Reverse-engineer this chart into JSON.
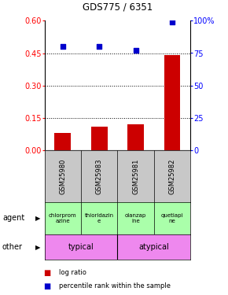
{
  "title": "GDS775 / 6351",
  "samples": [
    "GSM25980",
    "GSM25983",
    "GSM25981",
    "GSM25982"
  ],
  "log_ratio": [
    0.08,
    0.11,
    0.12,
    0.44
  ],
  "percentile": [
    80,
    80,
    77,
    99
  ],
  "bar_color": "#cc0000",
  "dot_color": "#0000cc",
  "left_ylim": [
    0,
    0.6
  ],
  "right_ylim": [
    0,
    100
  ],
  "left_yticks": [
    0,
    0.15,
    0.3,
    0.45,
    0.6
  ],
  "right_yticks": [
    0,
    25,
    50,
    75,
    100
  ],
  "right_yticklabels": [
    "0",
    "25",
    "50",
    "75",
    "100%"
  ],
  "dotted_lines": [
    0.15,
    0.3,
    0.45
  ],
  "agent_color": "#aaffaa",
  "other_color": "#ee88ee",
  "legend_items": [
    "log ratio",
    "percentile rank within the sample"
  ],
  "legend_colors": [
    "#cc0000",
    "#0000cc"
  ]
}
